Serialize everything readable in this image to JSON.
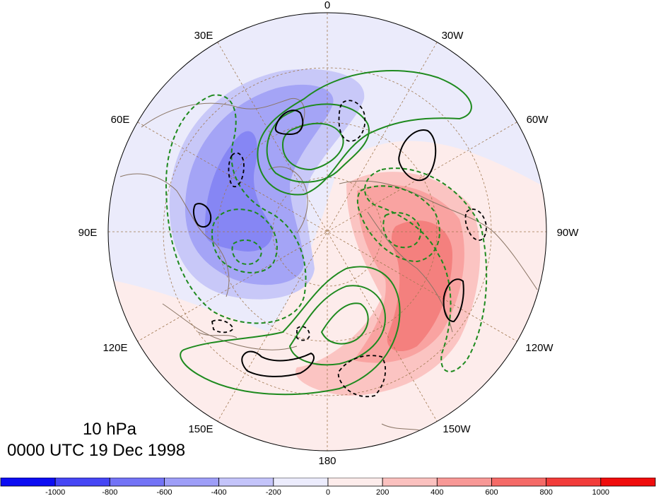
{
  "map": {
    "projection": "north-polar-stereographic",
    "longitude_labels": [
      {
        "text": "0",
        "lon": 0
      },
      {
        "text": "30W",
        "lon": -30
      },
      {
        "text": "60W",
        "lon": -60
      },
      {
        "text": "90W",
        "lon": -90
      },
      {
        "text": "120W",
        "lon": -120
      },
      {
        "text": "150W",
        "lon": -150
      },
      {
        "text": "180",
        "lon": 180
      },
      {
        "text": "150E",
        "lon": 150
      },
      {
        "text": "120E",
        "lon": 120
      },
      {
        "text": "90E",
        "lon": 90
      },
      {
        "text": "60E",
        "lon": 60
      },
      {
        "text": "30E",
        "lon": 30
      }
    ],
    "graticule_color": "#a07850",
    "coastline_color": "#8a7565",
    "contour_colors": {
      "green": "#1e8a1e",
      "black": "#000000"
    }
  },
  "caption": {
    "level": "10 hPa",
    "time": "0000 UTC 19 Dec 1998"
  },
  "colorbar": {
    "labels": [
      "-1000",
      "-800",
      "-600",
      "-400",
      "-200",
      "0",
      "200",
      "400",
      "600",
      "800",
      "1000"
    ],
    "colors": [
      "#0d0df2",
      "#4646f5",
      "#7373f6",
      "#9e9ef8",
      "#c4c4fa",
      "#ececfd",
      "#fdeceb",
      "#fbc1bf",
      "#f89896",
      "#f56a67",
      "#f23c3a",
      "#f00d0d"
    ]
  }
}
